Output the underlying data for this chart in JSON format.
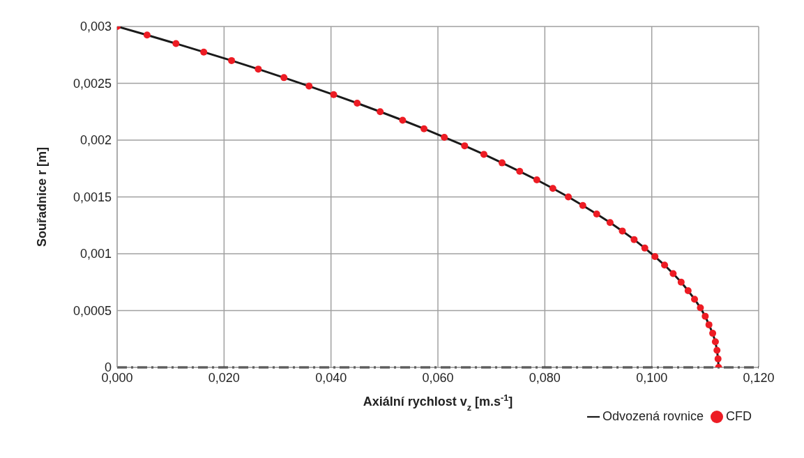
{
  "chart_data": {
    "type": "line",
    "xlabel": "Axiální rychlost v$_{z}$ [m.s$^{-1}$]",
    "ylabel": "Souřadnice r [m]",
    "xlim": [
      0,
      0.12
    ],
    "ylim": [
      0,
      0.003
    ],
    "xticks": [
      {
        "value": 0,
        "label": "0,000"
      },
      {
        "value": 0.02,
        "label": "0,020"
      },
      {
        "value": 0.04,
        "label": "0,040"
      },
      {
        "value": 0.06,
        "label": "0,060"
      },
      {
        "value": 0.08,
        "label": "0,080"
      },
      {
        "value": 0.1,
        "label": "0,100"
      },
      {
        "value": 0.12,
        "label": "0,120"
      }
    ],
    "yticks": [
      0,
      {
        "value": 0.0005,
        "label": "0,0005"
      },
      {
        "value": 0.001,
        "label": "0,001"
      },
      {
        "value": 0.0015,
        "label": "0,0015"
      },
      {
        "value": 0.002,
        "label": "0,002"
      },
      {
        "value": 0.0025,
        "label": "0,0025"
      },
      {
        "value": 0.003,
        "label": "0,003"
      }
    ],
    "grid": true,
    "legend": "bottom right",
    "line_style": "solid",
    "ref_lines": [
      {
        "axis": "y",
        "value": 0,
        "color": "#1a1a1a",
        "line_style": "dashed"
      }
    ],
    "series": [
      {
        "name": "Odvozená rovnice",
        "color": "#1a1a1a",
        "marker": "none",
        "x": [
          0,
          0.0056,
          0.011,
          0.0162,
          0.0214,
          0.0264,
          0.0312,
          0.0359,
          0.0405,
          0.0449,
          0.0492,
          0.0534,
          0.0574,
          0.0612,
          0.065,
          0.0686,
          0.072,
          0.0753,
          0.0785,
          0.0815,
          0.0844,
          0.0871,
          0.0897,
          0.0922,
          0.0945,
          0.0967,
          0.0987,
          0.1006,
          0.1024,
          0.104,
          0.1055,
          0.1068,
          0.108,
          0.1091,
          0.11,
          0.1107,
          0.1114,
          0.1119,
          0.1122,
          0.1124,
          0.1125
        ],
        "values": [
          0.003,
          0.002925,
          0.00285,
          0.002775,
          0.0027,
          0.002625,
          0.00255,
          0.002475,
          0.0024,
          0.002325,
          0.00225,
          0.002175,
          0.0021,
          0.002025,
          0.00195,
          0.001875,
          0.0018,
          0.001725,
          0.00165,
          0.001575,
          0.0015,
          0.001425,
          0.00135,
          0.001275,
          0.0012,
          0.001125,
          0.00105,
          0.000975,
          0.0009,
          0.000825,
          0.00075,
          0.000675,
          0.0006,
          0.000525,
          0.00045,
          0.000375,
          0.0003,
          0.000225,
          0.00015,
          7.5e-05,
          0
        ]
      },
      {
        "name": "CFD",
        "type": "scatter",
        "color": "#ed1c24",
        "marker": "circle",
        "x": [
          0,
          0.0056,
          0.011,
          0.0162,
          0.0214,
          0.0264,
          0.0312,
          0.0359,
          0.0405,
          0.0449,
          0.0492,
          0.0534,
          0.0574,
          0.0612,
          0.065,
          0.0686,
          0.072,
          0.0753,
          0.0785,
          0.0815,
          0.0844,
          0.0871,
          0.0897,
          0.0922,
          0.0945,
          0.0967,
          0.0987,
          0.1006,
          0.1024,
          0.104,
          0.1055,
          0.1068,
          0.108,
          0.1091,
          0.11,
          0.1107,
          0.1114,
          0.1119,
          0.1122,
          0.1124,
          0.1125
        ],
        "values": [
          0.003,
          0.002925,
          0.00285,
          0.002775,
          0.0027,
          0.002625,
          0.00255,
          0.002475,
          0.0024,
          0.002325,
          0.00225,
          0.002175,
          0.0021,
          0.002025,
          0.00195,
          0.001875,
          0.0018,
          0.001725,
          0.00165,
          0.001575,
          0.0015,
          0.001425,
          0.00135,
          0.001275,
          0.0012,
          0.001125,
          0.00105,
          0.000975,
          0.0009,
          0.000825,
          0.00075,
          0.000675,
          0.0006,
          0.000525,
          0.00045,
          0.000375,
          0.0003,
          0.000225,
          0.00015,
          7.5e-05,
          0
        ]
      }
    ]
  }
}
